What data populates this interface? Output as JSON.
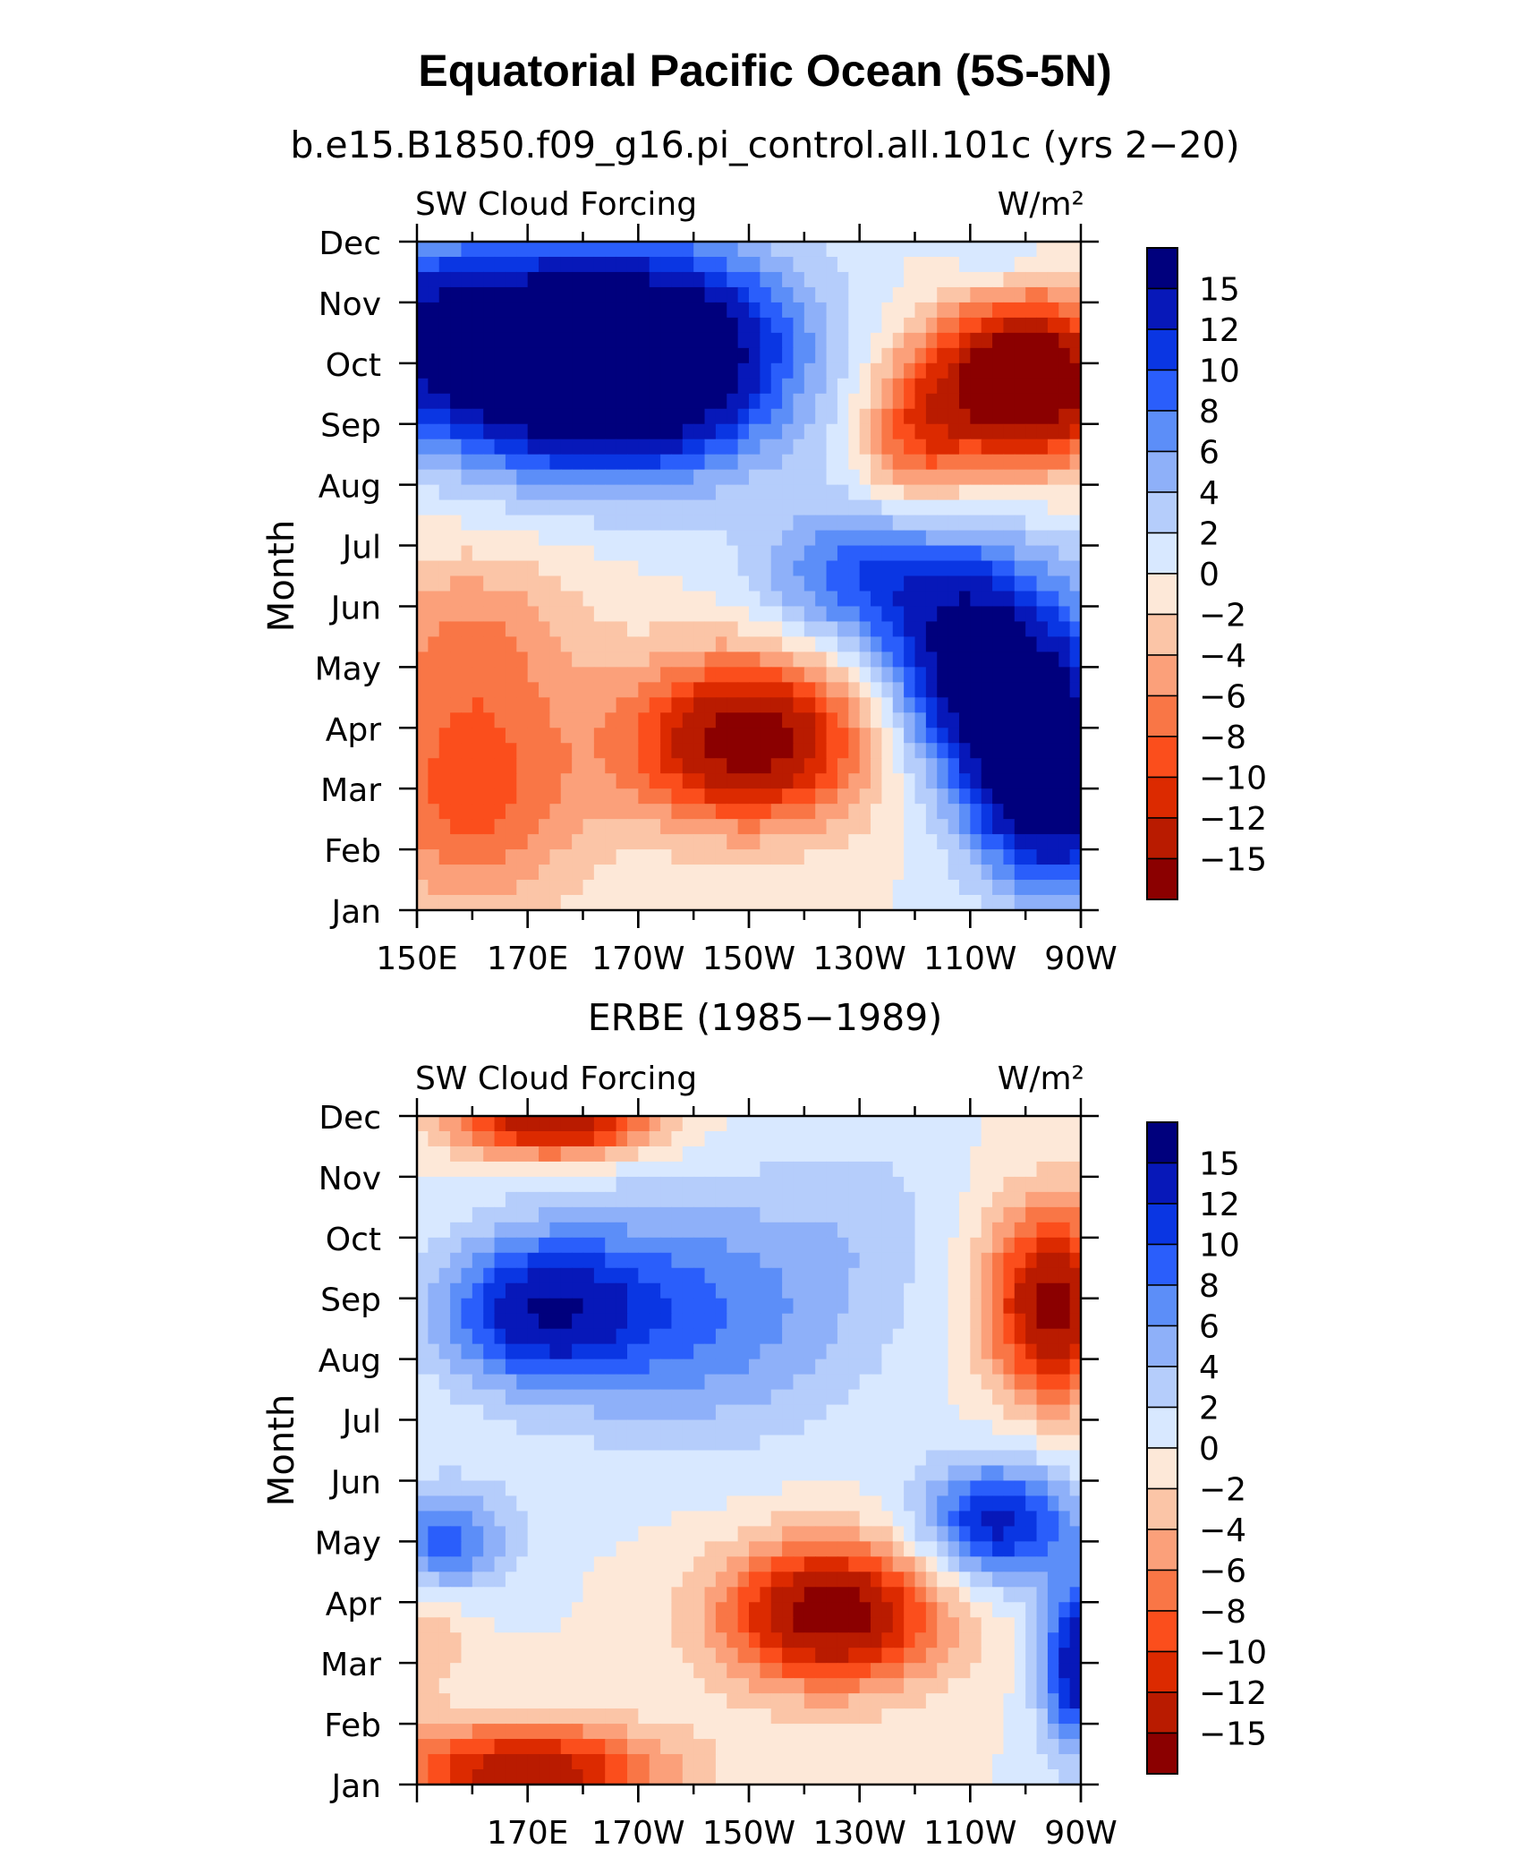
{
  "figure": {
    "title": "Equatorial Pacific Ocean (5S-5N)"
  },
  "colorbar": {
    "levels": [
      "15",
      "12",
      "10",
      "8",
      "6",
      "4",
      "2",
      "0",
      "−2",
      "−4",
      "−6",
      "−8",
      "−10",
      "−12",
      "−15"
    ],
    "colors": [
      "#8b0000",
      "#b91b00",
      "#dc2a00",
      "#fb4e1c",
      "#f97646",
      "#fba07a",
      "#fbc5a7",
      "#fde8d8",
      "#d8e8ff",
      "#b5cdfb",
      "#8eb0f9",
      "#5c8ef8",
      "#2a5efb",
      "#0a36e3",
      "#0718b9",
      "#00007d"
    ]
  },
  "chart_data": [
    {
      "type": "heatmap",
      "subtitle": "b.e15.B1850.f09_g16.pi_control.all.101c (yrs 2−20)",
      "title_left": "SW Cloud Forcing",
      "title_right": "W/m²",
      "ylabel": "Month",
      "x_tick_labels": [
        "150E",
        "170E",
        "170W",
        "150W",
        "130W",
        "110W",
        "90W"
      ],
      "x_ticks_lon": [
        150,
        170,
        190,
        210,
        230,
        250,
        270
      ],
      "xlim": [
        150,
        270
      ],
      "y_tick_labels": [
        "Jan",
        "Feb",
        "Mar",
        "Apr",
        "May",
        "Jun",
        "Jul",
        "Aug",
        "Sep",
        "Oct",
        "Nov",
        "Dec"
      ],
      "ylim": [
        1,
        12
      ],
      "colorbar_label": "W/m²",
      "features": [
        {
          "lon": 150,
          "month": 10.5,
          "value": 14,
          "slon": 45,
          "smon": 1.6
        },
        {
          "lon": 180,
          "month": 9.8,
          "value": 17,
          "slon": 25,
          "smon": 1.6
        },
        {
          "lon": 200,
          "month": 10.2,
          "value": 10,
          "slon": 22,
          "smon": 1.8
        },
        {
          "lon": 252,
          "month": 5.0,
          "value": 19,
          "slon": 16,
          "smon": 1.8
        },
        {
          "lon": 262,
          "month": 3.0,
          "value": 16,
          "slon": 12,
          "smon": 1.6
        },
        {
          "lon": 270,
          "month": 3.5,
          "value": 6,
          "slon": 8,
          "smon": 2.5
        },
        {
          "lon": 230,
          "month": 6.5,
          "value": 9,
          "slon": 18,
          "smon": 1.2
        },
        {
          "lon": 260,
          "month": 9.7,
          "value": -22,
          "slon": 16,
          "smon": 1.3
        },
        {
          "lon": 240,
          "month": 8.8,
          "value": -8,
          "slon": 10,
          "smon": 1.3
        },
        {
          "lon": 210,
          "month": 3.8,
          "value": -17,
          "slon": 22,
          "smon": 1.4
        },
        {
          "lon": 160,
          "month": 3.0,
          "value": -9,
          "slon": 20,
          "smon": 2.0
        },
        {
          "lon": 160,
          "month": 5.6,
          "value": -5,
          "slon": 20,
          "smon": 1.4
        },
        {
          "lon": 255,
          "month": 11.8,
          "value": 3,
          "slon": 8,
          "smon": 0.6
        }
      ]
    },
    {
      "type": "heatmap",
      "subtitle": "ERBE (1985−1989)",
      "title_left": "SW Cloud Forcing",
      "title_right": "W/m²",
      "ylabel": "Month",
      "x_tick_labels": [
        "170E",
        "170W",
        "150W",
        "130W",
        "110W",
        "90W"
      ],
      "x_ticks_lon": [
        170,
        190,
        210,
        230,
        250,
        270
      ],
      "xlim": [
        150,
        270
      ],
      "y_tick_labels": [
        "Jan",
        "Feb",
        "Mar",
        "Apr",
        "May",
        "Jun",
        "Jul",
        "Aug",
        "Sep",
        "Oct",
        "Nov",
        "Dec"
      ],
      "ylim": [
        1,
        12
      ],
      "colorbar_label": "W/m²",
      "features": [
        {
          "lon": 172,
          "month": 8.8,
          "value": 12,
          "slon": 18,
          "smon": 1.2
        },
        {
          "lon": 200,
          "month": 8.8,
          "value": 8,
          "slon": 30,
          "smon": 2.0
        },
        {
          "lon": 155,
          "month": 5.0,
          "value": 9,
          "slon": 12,
          "smon": 0.9
        },
        {
          "lon": 255,
          "month": 5.3,
          "value": 13,
          "slon": 14,
          "smon": 1.0
        },
        {
          "lon": 270,
          "month": 3.0,
          "value": 15,
          "slon": 7,
          "smon": 1.4
        },
        {
          "lon": 225,
          "month": 3.8,
          "value": -17,
          "slon": 20,
          "smon": 1.2
        },
        {
          "lon": 175,
          "month": 11.9,
          "value": -15,
          "slon": 18,
          "smon": 0.6
        },
        {
          "lon": 170,
          "month": 1.2,
          "value": -14,
          "slon": 25,
          "smon": 0.8
        },
        {
          "lon": 265,
          "month": 8.9,
          "value": -16,
          "slon": 12,
          "smon": 1.6
        },
        {
          "lon": 150,
          "month": 3.5,
          "value": -4,
          "slon": 10,
          "smon": 1.0
        },
        {
          "lon": 232,
          "month": 10.5,
          "value": 2,
          "slon": 15,
          "smon": 1.5
        }
      ]
    }
  ]
}
